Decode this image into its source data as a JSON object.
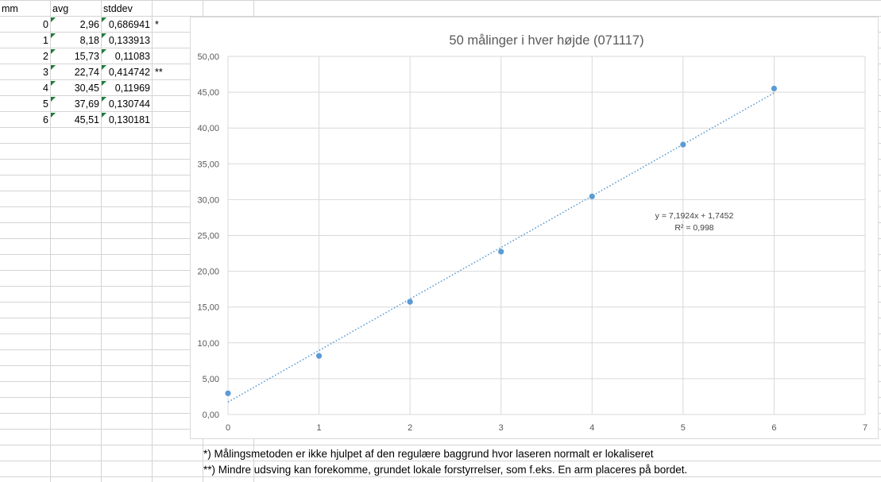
{
  "sheet": {
    "headers": {
      "mm": "mm",
      "avg": "avg",
      "stddev": "stddev"
    },
    "rows": [
      {
        "mm": "0",
        "avg": "2,96",
        "stddev": "0,686941",
        "mark": "*"
      },
      {
        "mm": "1",
        "avg": "8,18",
        "stddev": "0,133913",
        "mark": ""
      },
      {
        "mm": "2",
        "avg": "15,73",
        "stddev": "0,11083",
        "mark": ""
      },
      {
        "mm": "3",
        "avg": "22,74",
        "stddev": "0,414742",
        "mark": "**"
      },
      {
        "mm": "4",
        "avg": "30,45",
        "stddev": "0,11969",
        "mark": ""
      },
      {
        "mm": "5",
        "avg": "37,69",
        "stddev": "0,130744",
        "mark": ""
      },
      {
        "mm": "6",
        "avg": "45,51",
        "stddev": "0,130181",
        "mark": ""
      }
    ],
    "notes": [
      "*) Målingsmetoden er ikke hjulpet af den regulære baggrund hvor laseren normalt er lokaliseret",
      "**) Mindre udsving kan forekomme, grundet lokale forstyrrelser, som f.eks. En arm placeres på bordet."
    ]
  },
  "chart_data": {
    "type": "scatter",
    "title": "50 målinger i hver højde (071117)",
    "xlabel": "",
    "ylabel": "",
    "xlim": [
      0,
      7
    ],
    "ylim": [
      0,
      50
    ],
    "x_ticks": [
      "0",
      "1",
      "2",
      "3",
      "4",
      "5",
      "6",
      "7"
    ],
    "y_ticks": [
      "0,00",
      "5,00",
      "10,00",
      "15,00",
      "20,00",
      "25,00",
      "30,00",
      "35,00",
      "40,00",
      "45,00",
      "50,00"
    ],
    "grid": true,
    "series": [
      {
        "x": [
          0,
          1,
          2,
          3,
          4,
          5,
          6
        ],
        "y": [
          2.96,
          8.18,
          15.73,
          22.74,
          30.45,
          37.69,
          45.51
        ],
        "color": "#5b9bd5"
      }
    ],
    "trendline": {
      "type": "linear",
      "slope": 7.1924,
      "intercept": 1.7452,
      "x_range": [
        0,
        6
      ],
      "style": "dotted",
      "color": "#5b9bd5",
      "equation": "y = 7,1924x + 1,7452",
      "r_squared": "R² = 0,998"
    }
  }
}
